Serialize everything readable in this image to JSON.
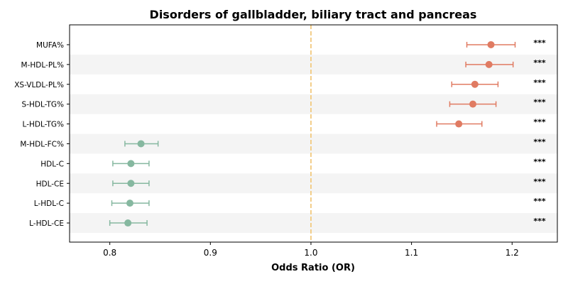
{
  "chart_data": {
    "type": "scatter",
    "subtype": "forest-plot",
    "title": "Disorders of gallbladder, biliary tract and pancreas",
    "xlabel": "Odds Ratio (OR)",
    "ylabel": "",
    "xlim": [
      0.76,
      1.245
    ],
    "xticks": [
      0.8,
      0.9,
      1.0,
      1.1,
      1.2
    ],
    "xtick_labels": [
      "0.8",
      "0.9",
      "1.0",
      "1.1",
      "1.2"
    ],
    "reference_line": 1.0,
    "grid": false,
    "row_striping": true,
    "colors": {
      "increase": "#E07B62",
      "decrease": "#86B8A0",
      "reference": "#F2C97E",
      "stripe": "#F4F4F4"
    },
    "categories": [
      "MUFA%",
      "M-HDL-PL%",
      "XS-VLDL-PL%",
      "S-HDL-TG%",
      "L-HDL-TG%",
      "M-HDL-FC%",
      "HDL-C",
      "HDL-CE",
      "L-HDL-C",
      "L-HDL-CE"
    ],
    "or": [
      1.179,
      1.177,
      1.163,
      1.161,
      1.147,
      0.831,
      0.821,
      0.821,
      0.82,
      0.818
    ],
    "ci_low": [
      1.155,
      1.154,
      1.14,
      1.138,
      1.125,
      0.815,
      0.803,
      0.803,
      0.802,
      0.8
    ],
    "ci_high": [
      1.203,
      1.201,
      1.186,
      1.184,
      1.17,
      0.848,
      0.839,
      0.839,
      0.839,
      0.837
    ],
    "significance": [
      "***",
      "***",
      "***",
      "***",
      "***",
      "***",
      "***",
      "***",
      "***",
      "***"
    ]
  }
}
